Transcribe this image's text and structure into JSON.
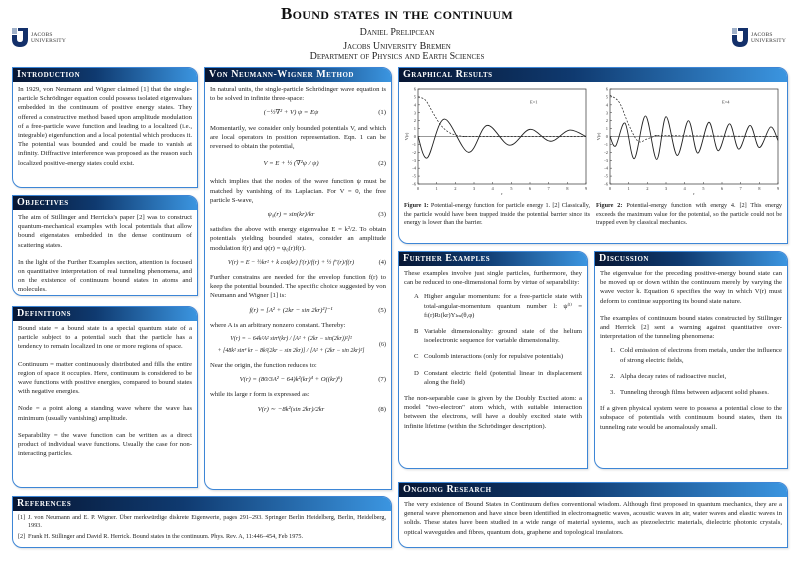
{
  "header": {
    "title": "Bound states in the continuum",
    "author": "Daniel Prelipcean",
    "institution": "Jacobs University Bremen",
    "department": "Department of Physics and Earth Sciences",
    "logo_text_1": "JACOBS",
    "logo_text_2": "UNIVERSITY"
  },
  "colors": {
    "accent": "#3d86d6",
    "header_dark": "#071633",
    "header_light": "#3b95e0"
  },
  "introduction": {
    "title": "Introduction",
    "text": "In 1929, von Neumann and Wigner claimed [1] that the single-particle Schrödinger equation could possess isolated eigenvalues embedded in the continuum of positive energy states. They offered a constructive method based upon amplitude modulation of a free-particle wave function and leading to a localized (i.e., integrable) eigenfunction and a local potential which produces it. The potential was bounded and could be made to vanish at infinity. Diffractive interference was proposed as the reason such localized positive-energy states could exist."
  },
  "objectives": {
    "title": "Objectives",
    "p1": "The aim of Stillinger and Herricks's paper [2] was to construct quantum-mechanical examples with local potentials that allow bound eigenstates embedded in the dense continuum of scattering states.",
    "p2": "In the light of the Further Examples section, attention is focused on quantitative interpretation of real tunneling phenomena, and on the existence of continuum bound states in atoms and molecules."
  },
  "definitions": {
    "title": "Definitions",
    "items": [
      "Bound state = a bound state is a special quantum state of a particle subject to a potential such that the particle has a tendency to remain localized in one or more regions of space.",
      "Continuum = matter continuously distributed and fills the entire region of space it occupies.  Here, continuum is considered to be wave functions with positive energies, compared to bound states with negative energies.",
      "Node = a point along a standing wave where the wave has minimum (usually vanishing) amplitude.",
      "Separability = the wave function can be written as a direct product of individual wave functions. Usually the case for non-interacting particles."
    ]
  },
  "references": {
    "title": "References",
    "items": [
      {
        "n": "[1]",
        "text": "J. von Neumann and E. P. Wigner. Über merkwürdige diskrete Eigenwerte, pages 291–293. Springer Berlin Heidelberg, Berlin, Heidelberg, 1993."
      },
      {
        "n": "[2]",
        "text": "Frank H. Stillinger and David R. Herrick. Bound states in the continuum. Phys. Rev. A, 11:446–454, Feb 1975."
      }
    ]
  },
  "method": {
    "title": "Von Neumann-Wigner Method",
    "t1": "In natural units, the single-particle Schrödinger wave equation is to be solved in infinite three-space:",
    "eq1": "(−½∇² + V) ψ = Eψ",
    "n1": "(1)",
    "t2": "Momentarily, we consider only bounded potentials V, and which are local operators in position representation. Eqn. 1 can be reversed to obtain the potential,",
    "eq2": "V = E + ½ (∇²ψ / ψ)",
    "n2": "(2)",
    "t3": "which implies that the nodes of the wave function ψ must be matched by vanishing of its Laplacian. For V = 0, the free particle S-wave,",
    "eq3": "ψ₀(r) = sin(kr)/kr",
    "n3": "(3)",
    "t4": "satisfies the above with energy eigenvalue E = k²/2. To obtain potentials yielding bounded states, consider an amplitude modulation f(r) and ψ(r) = ψ₀(r)f(r).",
    "eq4": "V(r) = E − ½kr² + k cot(kr) f′(r)/f(r) + ½ f″(r)/f(r)",
    "n4": "(4)",
    "t5": "Further constrains are needed for the envelop function f(r) to keep the potential bounded. The specific choice suggested by von Neumann and Wigner [1] is:",
    "eq5": "f(r) = [A² + (2kr − sin 2kr)²]⁻¹",
    "n5": "(5)",
    "t6": "where A is an arbitrary nonzero constant. Thereby:",
    "eq6a": "V(r) = − 64k²A² sin⁴(kr) / [A² + (2kr − sin(2kr))²]²",
    "eq6b": "+ [48k² sin⁴ kr − 8k²(2kr − sin 2kr)] / [A² + (2kr − sin 2kr)²]",
    "n6": "(6)",
    "t7": "Near the origin, the function reduces to:",
    "eq7": "V(r) = (80/3A² − 64)k²(kr)⁴ + O((kr)⁶)",
    "n7": "(7)",
    "t8": "while its large r form is expressed as:",
    "eq8": "V(r) ∼ −8k²(sin 2kr)/2kr",
    "n8": "(8)"
  },
  "graphical": {
    "title": "Graphical Results",
    "fig1_label": "Figure 1:",
    "fig1_caption": "Potential-energy function for particle energy 1. [2] Classically, the particle would have been trapped inside the potential barrier since its energy is lower than the barrier.",
    "fig2_label": "Figure 2:",
    "fig2_caption": "Potential-energy function with energy 4. [2] This energy exceeds the maximum value for the potential, so the particle could not be trapped even by classical mechanics."
  },
  "chart_data": [
    {
      "type": "line",
      "xlabel": "r",
      "ylabel": "V(r)",
      "xlim": [
        0,
        9
      ],
      "ylim": [
        -6,
        6
      ],
      "xticks": [
        0,
        1,
        2,
        3,
        4,
        5,
        6,
        7,
        8,
        9
      ],
      "yticks": [
        -6,
        -5,
        -4,
        -3,
        -2,
        -1,
        0,
        1,
        2,
        3,
        4,
        5,
        6
      ],
      "annotation": "E=1",
      "series": [
        {
          "style": "solid",
          "x": [
            0,
            0.5,
            1.4,
            2.7,
            3.7,
            4.9,
            6,
            7.1,
            8.1,
            9
          ],
          "y": [
            0,
            -2.7,
            2.2,
            -2,
            1.4,
            -1.1,
            0.9,
            -0.6,
            0.8,
            0
          ]
        },
        {
          "style": "dashed",
          "x": [
            0,
            0.4,
            0.8,
            1.2,
            1.6,
            2,
            2.5,
            3,
            9
          ],
          "y": [
            5,
            4.6,
            3,
            1.5,
            0.6,
            0.2,
            0,
            0,
            0
          ]
        }
      ]
    },
    {
      "type": "line",
      "xlabel": "r",
      "ylabel": "V(r)",
      "xlim": [
        0,
        9
      ],
      "ylim": [
        -6,
        6
      ],
      "xticks": [
        0,
        1,
        2,
        3,
        4,
        5,
        6,
        7,
        8,
        9
      ],
      "yticks": [
        -6,
        -5,
        -4,
        -3,
        -2,
        -1,
        0,
        1,
        2,
        3,
        4,
        5,
        6
      ],
      "annotation": "E=4",
      "series": [
        {
          "style": "solid",
          "x": [
            0,
            0.3,
            0.8,
            1.3,
            1.9,
            2.5,
            3,
            3.6,
            4.2,
            4.7,
            5.3,
            5.8,
            6.4,
            6.9,
            7.5,
            8,
            8.6,
            9
          ],
          "y": [
            0,
            -1.2,
            1.7,
            -2.8,
            2.6,
            -2.9,
            2.5,
            -2.4,
            2,
            -2.1,
            1.8,
            -1.8,
            1.6,
            -1.6,
            1.4,
            -1.4,
            1.2,
            -0.5
          ]
        },
        {
          "style": "dashed",
          "x": [
            0,
            0.5,
            1,
            1.5,
            2,
            2.5,
            3,
            9
          ],
          "y": [
            5.2,
            4.3,
            1.5,
            -0.6,
            -0.3,
            0.1,
            0.1,
            0
          ]
        }
      ]
    }
  ],
  "further": {
    "title": "Further Examples",
    "intro": "These examples involve just single particles, furthermore, they can be reduced to one-dimensional form by virtue of separability:",
    "items": [
      {
        "l": "A",
        "t": "Higher angular momentum: for a free-particle state with total-angular-momentum quantum number l: ψ⁽ˡ⁾ = fₗ(r)Rₗ(kr)Yₗₘ(θ,φ)"
      },
      {
        "l": "B",
        "t": "Variable dimensionality: ground state of the helium isoelectronic sequence for variable dimensionality."
      },
      {
        "l": "C",
        "t": "Coulomb interactions (only for repulsive potentials)"
      },
      {
        "l": "D",
        "t": "Constant electric field (potential linear in displacement along the field)"
      }
    ],
    "outro": "The non-separable case is given by the Doubly Excited atom: a model \"two-electron\" atom which, with suitable interaction between the electrons, will have a doubly excited state with infinite lifetime (within the Schrödinger description)."
  },
  "discussion": {
    "title": "Discussion",
    "p1": "The eigenvalue for the preceding positive-energy bound state can be moved up or down within the continuum merely by varying the wave vector k. Equation 6 specifies the way in which V(r) must deform to continue supporting its bound state nature.",
    "p2": "The examples of continuum bound states constructed by Stillinger and Herrick [2] sent a warning against quantitative over-interpretation of the tunneling phenomena:",
    "items": [
      {
        "l": "1.",
        "t": "Cold emission of electrons from metals, under the influence of strong electric fields,"
      },
      {
        "l": "2.",
        "t": "Alpha decay rates of radioactive nuclei,"
      },
      {
        "l": "3.",
        "t": "Tunneling through films between adjacent solid phases."
      }
    ],
    "p3": "If a given physical system were to possess a potential close to the subspace of potentials with continuum bound states, then its tunneling rate would be anomalously small."
  },
  "ongoing": {
    "title": "Ongoing Research",
    "text": "The very existence of Bound States in Continuum defies conventional wisdom.  Although first proposed in quantum mechanics, they are a general wave phenomenon and have since been identified in electromagnetic waves, acoustic waves in air, water waves and elastic waves in solids. These states have been studied in a wide range of material systems, such as piezoelectric materials, dielectric photonic crystals, optical waveguides and fibres, quantum dots, graphene and topological insulators."
  }
}
